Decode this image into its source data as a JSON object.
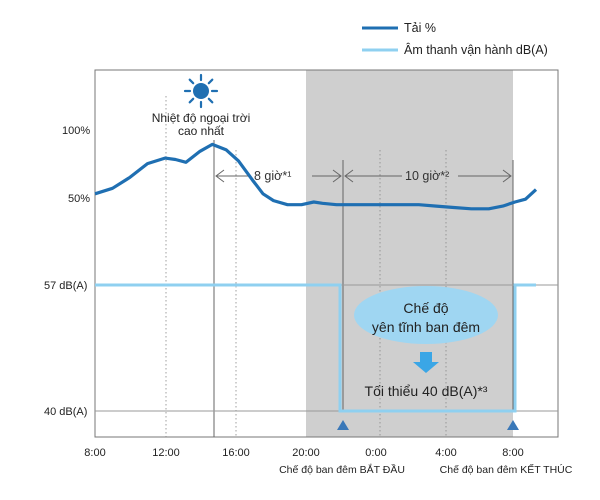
{
  "chart_data": {
    "type": "line",
    "legend": {
      "placement": "top-right",
      "items": [
        {
          "name": "Tải %",
          "color": "#1f6fb2"
        },
        {
          "name": "Âm thanh vận hành dB(A)",
          "color": "#8fd0f0"
        }
      ]
    },
    "x_ticks": [
      "8:00",
      "12:00",
      "16:00",
      "20:00",
      "0:00",
      "4:00",
      "8:00"
    ],
    "y_labels": {
      "load": [
        "100%",
        "50%"
      ],
      "sound": [
        "57 dB(A)",
        "40 dB(A)"
      ]
    },
    "load_percent": {
      "x_hours": [
        8,
        9,
        10,
        11,
        12,
        12.6,
        13.2,
        14,
        14.7,
        15.5,
        16.2,
        17,
        17.6,
        18.2,
        19,
        19.8,
        20.5,
        21,
        21.8,
        22.5,
        23.5,
        24.5,
        25.5,
        26.5,
        27.5,
        28.5,
        29.5,
        30.5,
        31.3,
        32,
        32.6,
        33.2
      ],
      "values": [
        52,
        56,
        64,
        74,
        78,
        77,
        75,
        83,
        88,
        84,
        76,
        62,
        52,
        47,
        44,
        44,
        46,
        45,
        44,
        44,
        44,
        44,
        44,
        44,
        43,
        42,
        41,
        41,
        43,
        46,
        48,
        55
      ]
    },
    "sound_dba": {
      "x_hours": [
        8,
        22,
        22,
        32,
        32,
        33.2
      ],
      "values": [
        57,
        57,
        40,
        40,
        57,
        57
      ]
    },
    "night_shading": {
      "from": "20:00",
      "to": "8:00"
    },
    "annotations": {
      "peak_label_line1": "Nhiệt độ ngoại trời",
      "peak_label_line2": "cao nhất",
      "duration_1": "8 giờ*¹",
      "duration_2": "10 giờ*²",
      "quiet_mode_line1": "Chế độ",
      "quiet_mode_line2": "yên tĩnh ban đêm",
      "minimum": "Tối thiểu 40 dB(A)*³",
      "night_start": "Chế độ ban đêm BẮT ĐẦU",
      "night_end": "Chế độ ban đêm KẾT THÚC"
    },
    "icons": {
      "day": "sun-icon",
      "night": "moon-icon"
    },
    "colors": {
      "shade": "#cfcfcf",
      "load": "#1f6fb2",
      "sound": "#8fd0f0",
      "bubble": "#9fd6f2",
      "arrow": "#3a78b8"
    },
    "grid": false
  }
}
